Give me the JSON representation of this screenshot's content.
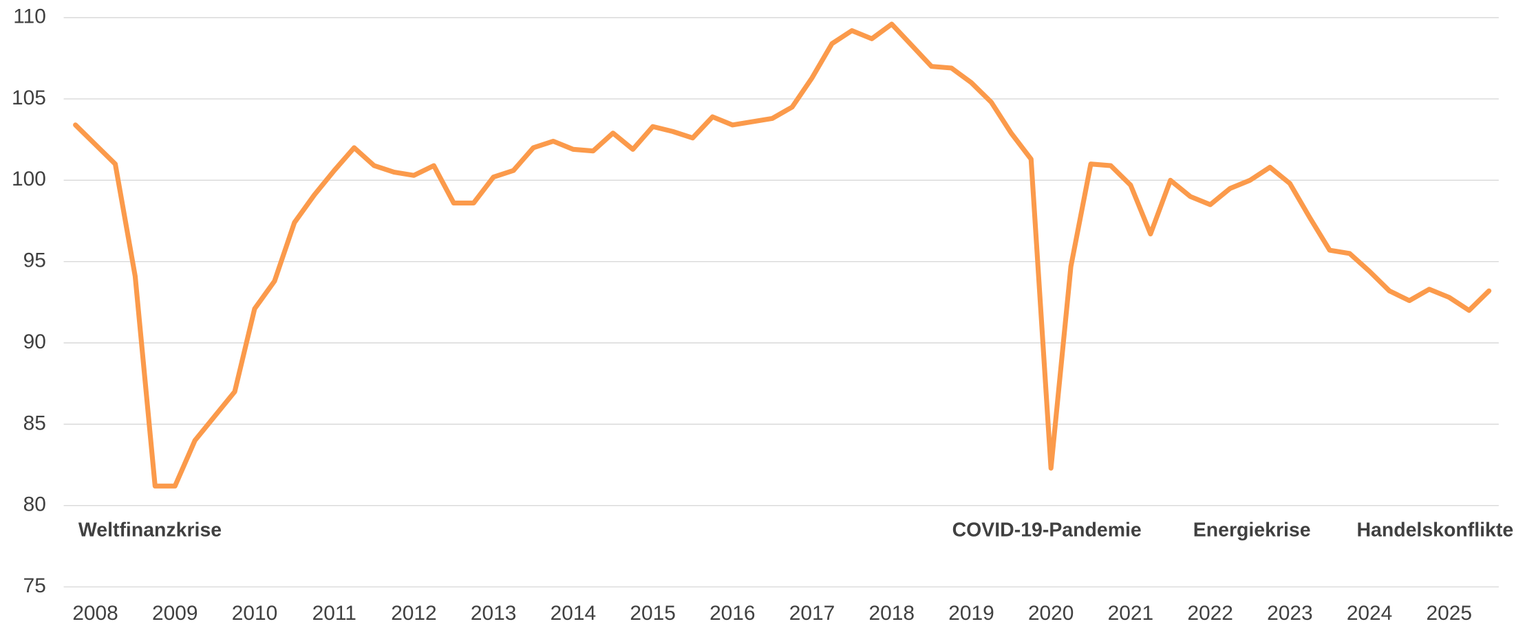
{
  "chart_data": {
    "type": "line",
    "categories": [
      null,
      "2008",
      null,
      null,
      null,
      "2009",
      null,
      null,
      null,
      "2010",
      null,
      null,
      null,
      "2011",
      null,
      null,
      null,
      "2012",
      null,
      null,
      null,
      "2013",
      null,
      null,
      null,
      "2014",
      null,
      null,
      null,
      "2015",
      null,
      null,
      null,
      "2016",
      null,
      null,
      null,
      "2017",
      null,
      null,
      null,
      "2018",
      null,
      null,
      null,
      "2019",
      null,
      null,
      null,
      "2020",
      null,
      null,
      null,
      "2021",
      null,
      null,
      null,
      "2022",
      null,
      null,
      null,
      "2023",
      null,
      null,
      null,
      "2024",
      null,
      null,
      null,
      "2025",
      null,
      null
    ],
    "series": [
      {
        "color": "#fb9a4b",
        "values": [
          103.4,
          102.2,
          101.0,
          94.1,
          81.2,
          81.2,
          84.0,
          85.5,
          87.0,
          92.1,
          93.8,
          97.4,
          99.1,
          100.6,
          102.0,
          100.9,
          100.5,
          100.3,
          100.9,
          98.6,
          98.6,
          100.2,
          100.6,
          102.0,
          102.4,
          101.9,
          101.8,
          102.9,
          101.9,
          103.3,
          103.0,
          102.6,
          103.9,
          103.4,
          103.6,
          103.8,
          104.5,
          106.3,
          108.4,
          109.2,
          108.7,
          109.6,
          108.3,
          107.0,
          106.9,
          106.0,
          104.8,
          102.9,
          101.3,
          82.3,
          94.7,
          101.0,
          100.9,
          99.7,
          96.7,
          100.0,
          99.0,
          98.5,
          99.5,
          100.0,
          100.8,
          99.8,
          97.7,
          95.7,
          95.5,
          94.4,
          93.2,
          92.6,
          93.3,
          92.8,
          92.0,
          93.2
        ]
      }
    ],
    "ylim": [
      75,
      110
    ],
    "yticks": [
      75,
      80,
      85,
      90,
      95,
      100,
      105,
      110
    ],
    "grid": true,
    "annotations": [
      "Weltfinanzkrise",
      "COVID-19-Pandemie",
      "Energiekrise",
      "Handelskonflikte"
    ]
  }
}
